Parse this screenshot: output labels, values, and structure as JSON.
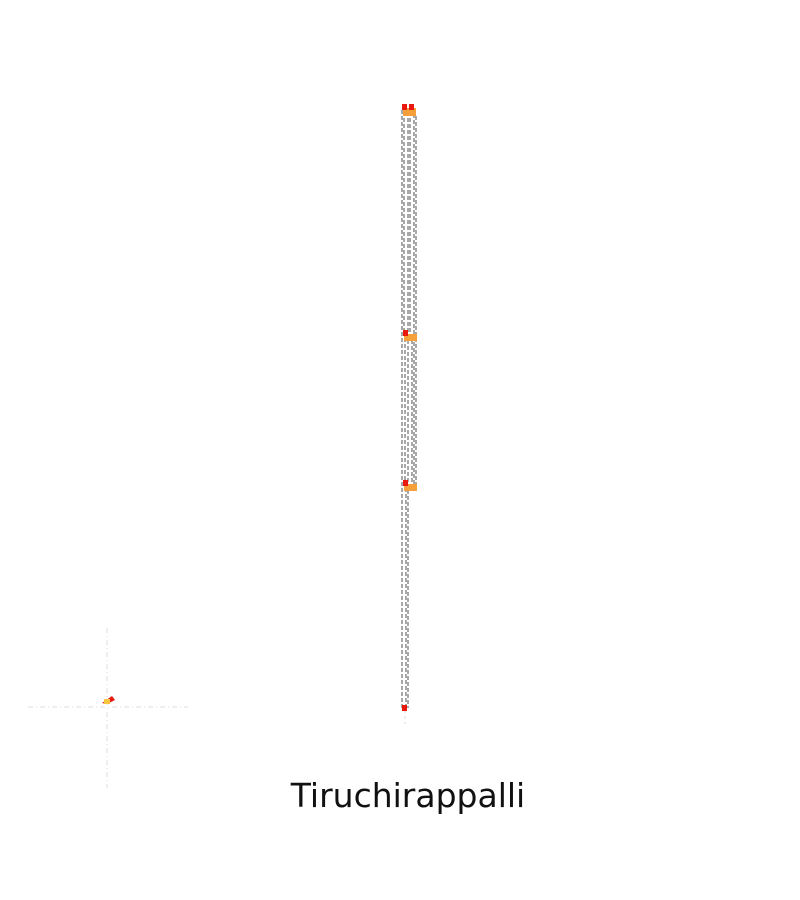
{
  "title": "Tiruchirappalli",
  "colors": {
    "background": "#ffffff",
    "edge": "#7a7a7a",
    "crosshair": "#dddddd",
    "node_red": "#e8180c",
    "node_orange": "#f5a03a",
    "node_yellow": "#f7c640"
  },
  "nodes": [
    {
      "id": "top",
      "color": "node_red",
      "accent": "node_orange"
    },
    {
      "id": "middle",
      "color": "node_red",
      "accent": "node_orange"
    },
    {
      "id": "lower",
      "color": "node_red",
      "accent": "node_orange"
    },
    {
      "id": "bottom",
      "color": "node_red",
      "accent": null
    },
    {
      "id": "origin-marker",
      "color": "node_yellow",
      "accent": "node_orange"
    }
  ]
}
